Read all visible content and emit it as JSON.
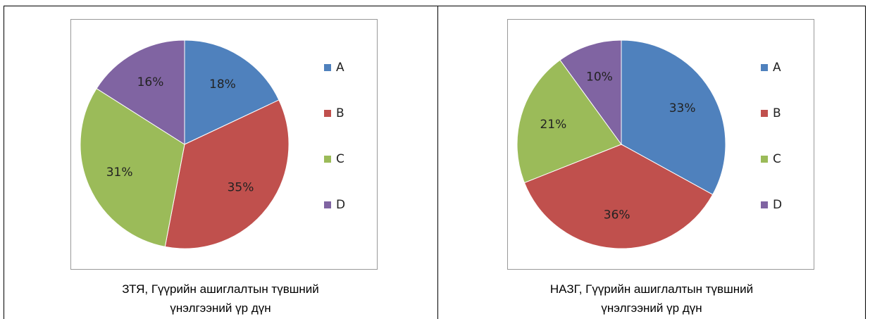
{
  "chart_data": [
    {
      "type": "pie",
      "caption": "ЗТЯ, Гүүрийн ашиглалтын түвшний үнэлгээний үр дүн",
      "categories": [
        "A",
        "B",
        "C",
        "D"
      ],
      "values": [
        18,
        35,
        31,
        16
      ],
      "value_labels": [
        "18%",
        "35%",
        "31%",
        "16%"
      ],
      "colors": [
        "#4f81bd",
        "#c0504d",
        "#9bbb59",
        "#8064a2"
      ],
      "legend": "right"
    },
    {
      "type": "pie",
      "caption": "НАЗГ, Гүүрийн ашиглалтын түвшний үнэлгээний үр дүн",
      "categories": [
        "A",
        "B",
        "C",
        "D"
      ],
      "values": [
        33,
        36,
        21,
        10
      ],
      "value_labels": [
        "33%",
        "36%",
        "21%",
        "10%"
      ],
      "colors": [
        "#4f81bd",
        "#c0504d",
        "#9bbb59",
        "#8064a2"
      ],
      "legend": "right"
    }
  ]
}
